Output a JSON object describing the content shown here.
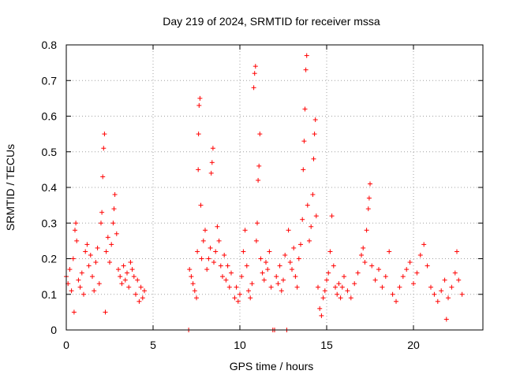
{
  "chart_data": {
    "type": "scatter",
    "title": "Day 219 of 2024, SRMTID for receiver mssa",
    "xlabel": "GPS time / hours",
    "ylabel": "SRMTID / TECUs",
    "xlim": [
      0,
      24
    ],
    "ylim": [
      0,
      0.8
    ],
    "xticks": [
      0,
      5,
      10,
      15,
      20
    ],
    "xtick_labels": [
      "0",
      "5",
      "10",
      "15",
      "20"
    ],
    "yticks": [
      0,
      0.1,
      0.2,
      0.3,
      0.4,
      0.5,
      0.6,
      0.7,
      0.8
    ],
    "ytick_labels": [
      "0",
      "0.1",
      "0.2",
      "0.3",
      "0.4",
      "0.5",
      "0.6",
      "0.7",
      "0.8"
    ],
    "grid": true,
    "marker": "+",
    "color": "#ff0000",
    "series": [
      {
        "name": "mssa",
        "points": [
          [
            0.0,
            0.15
          ],
          [
            0.1,
            0.13
          ],
          [
            0.2,
            0.17
          ],
          [
            0.3,
            0.11
          ],
          [
            0.4,
            0.2
          ],
          [
            0.45,
            0.05
          ],
          [
            0.5,
            0.28
          ],
          [
            0.55,
            0.3
          ],
          [
            0.6,
            0.25
          ],
          [
            0.7,
            0.14
          ],
          [
            0.8,
            0.12
          ],
          [
            0.9,
            0.16
          ],
          [
            1.0,
            0.1
          ],
          [
            1.1,
            0.22
          ],
          [
            1.2,
            0.24
          ],
          [
            1.3,
            0.18
          ],
          [
            1.4,
            0.21
          ],
          [
            1.5,
            0.15
          ],
          [
            1.6,
            0.11
          ],
          [
            1.7,
            0.19
          ],
          [
            1.8,
            0.23
          ],
          [
            1.9,
            0.13
          ],
          [
            2.0,
            0.3
          ],
          [
            2.05,
            0.33
          ],
          [
            2.1,
            0.43
          ],
          [
            2.15,
            0.51
          ],
          [
            2.2,
            0.55
          ],
          [
            2.25,
            0.05
          ],
          [
            2.3,
            0.22
          ],
          [
            2.4,
            0.26
          ],
          [
            2.5,
            0.19
          ],
          [
            2.6,
            0.24
          ],
          [
            2.7,
            0.3
          ],
          [
            2.75,
            0.34
          ],
          [
            2.8,
            0.38
          ],
          [
            2.9,
            0.27
          ],
          [
            3.0,
            0.17
          ],
          [
            3.1,
            0.15
          ],
          [
            3.2,
            0.13
          ],
          [
            3.3,
            0.18
          ],
          [
            3.4,
            0.14
          ],
          [
            3.5,
            0.16
          ],
          [
            3.6,
            0.12
          ],
          [
            3.7,
            0.19
          ],
          [
            3.8,
            0.17
          ],
          [
            3.9,
            0.15
          ],
          [
            4.0,
            0.1
          ],
          [
            4.1,
            0.14
          ],
          [
            4.2,
            0.08
          ],
          [
            4.3,
            0.12
          ],
          [
            4.4,
            0.09
          ],
          [
            4.5,
            0.11
          ],
          [
            7.05,
            0.0
          ],
          [
            7.1,
            0.17
          ],
          [
            7.2,
            0.15
          ],
          [
            7.3,
            0.13
          ],
          [
            7.4,
            0.11
          ],
          [
            7.5,
            0.09
          ],
          [
            7.55,
            0.22
          ],
          [
            7.6,
            0.45
          ],
          [
            7.62,
            0.55
          ],
          [
            7.65,
            0.63
          ],
          [
            7.7,
            0.65
          ],
          [
            7.75,
            0.35
          ],
          [
            7.8,
            0.2
          ],
          [
            7.9,
            0.25
          ],
          [
            8.0,
            0.28
          ],
          [
            8.1,
            0.17
          ],
          [
            8.2,
            0.2
          ],
          [
            8.3,
            0.23
          ],
          [
            8.35,
            0.44
          ],
          [
            8.4,
            0.47
          ],
          [
            8.45,
            0.51
          ],
          [
            8.5,
            0.19
          ],
          [
            8.6,
            0.22
          ],
          [
            8.7,
            0.29
          ],
          [
            8.8,
            0.25
          ],
          [
            8.9,
            0.18
          ],
          [
            9.0,
            0.15
          ],
          [
            9.1,
            0.21
          ],
          [
            9.2,
            0.14
          ],
          [
            9.3,
            0.18
          ],
          [
            9.4,
            0.12
          ],
          [
            9.5,
            0.16
          ],
          [
            9.7,
            0.09
          ],
          [
            9.8,
            0.12
          ],
          [
            9.9,
            0.08
          ],
          [
            10.0,
            0.1
          ],
          [
            10.1,
            0.15
          ],
          [
            10.2,
            0.22
          ],
          [
            10.3,
            0.28
          ],
          [
            10.4,
            0.18
          ],
          [
            10.5,
            0.11
          ],
          [
            10.6,
            0.09
          ],
          [
            10.7,
            0.13
          ],
          [
            10.8,
            0.68
          ],
          [
            10.85,
            0.72
          ],
          [
            10.9,
            0.74
          ],
          [
            10.95,
            0.25
          ],
          [
            11.0,
            0.3
          ],
          [
            11.05,
            0.42
          ],
          [
            11.1,
            0.46
          ],
          [
            11.15,
            0.55
          ],
          [
            11.2,
            0.2
          ],
          [
            11.3,
            0.16
          ],
          [
            11.4,
            0.14
          ],
          [
            11.5,
            0.19
          ],
          [
            11.6,
            0.17
          ],
          [
            11.7,
            0.22
          ],
          [
            11.8,
            0.12
          ],
          [
            11.9,
            0.0
          ],
          [
            12.0,
            0.0
          ],
          [
            12.1,
            0.15
          ],
          [
            12.2,
            0.13
          ],
          [
            12.3,
            0.18
          ],
          [
            12.4,
            0.11
          ],
          [
            12.5,
            0.14
          ],
          [
            12.6,
            0.21
          ],
          [
            12.7,
            0.0
          ],
          [
            12.8,
            0.28
          ],
          [
            12.9,
            0.19
          ],
          [
            13.0,
            0.17
          ],
          [
            13.1,
            0.23
          ],
          [
            13.2,
            0.15
          ],
          [
            13.3,
            0.12
          ],
          [
            13.4,
            0.2
          ],
          [
            13.5,
            0.24
          ],
          [
            13.6,
            0.31
          ],
          [
            13.65,
            0.45
          ],
          [
            13.7,
            0.53
          ],
          [
            13.75,
            0.62
          ],
          [
            13.8,
            0.73
          ],
          [
            13.85,
            0.77
          ],
          [
            13.9,
            0.35
          ],
          [
            14.0,
            0.25
          ],
          [
            14.1,
            0.29
          ],
          [
            14.2,
            0.38
          ],
          [
            14.25,
            0.48
          ],
          [
            14.3,
            0.55
          ],
          [
            14.35,
            0.59
          ],
          [
            14.4,
            0.32
          ],
          [
            14.5,
            0.12
          ],
          [
            14.6,
            0.06
          ],
          [
            14.7,
            0.04
          ],
          [
            14.8,
            0.09
          ],
          [
            14.9,
            0.11
          ],
          [
            15.0,
            0.14
          ],
          [
            15.1,
            0.16
          ],
          [
            15.2,
            0.22
          ],
          [
            15.3,
            0.32
          ],
          [
            15.4,
            0.18
          ],
          [
            15.5,
            0.12
          ],
          [
            15.6,
            0.1
          ],
          [
            15.7,
            0.13
          ],
          [
            15.8,
            0.09
          ],
          [
            15.9,
            0.12
          ],
          [
            16.0,
            0.15
          ],
          [
            16.2,
            0.11
          ],
          [
            16.4,
            0.09
          ],
          [
            16.6,
            0.13
          ],
          [
            16.8,
            0.16
          ],
          [
            17.0,
            0.21
          ],
          [
            17.1,
            0.23
          ],
          [
            17.2,
            0.19
          ],
          [
            17.3,
            0.28
          ],
          [
            17.4,
            0.34
          ],
          [
            17.45,
            0.37
          ],
          [
            17.5,
            0.41
          ],
          [
            17.6,
            0.18
          ],
          [
            17.8,
            0.14
          ],
          [
            18.0,
            0.17
          ],
          [
            18.2,
            0.12
          ],
          [
            18.4,
            0.15
          ],
          [
            18.6,
            0.22
          ],
          [
            18.8,
            0.1
          ],
          [
            19.0,
            0.08
          ],
          [
            19.2,
            0.12
          ],
          [
            19.4,
            0.15
          ],
          [
            19.6,
            0.17
          ],
          [
            19.8,
            0.19
          ],
          [
            20.0,
            0.13
          ],
          [
            20.2,
            0.16
          ],
          [
            20.4,
            0.21
          ],
          [
            20.6,
            0.24
          ],
          [
            20.8,
            0.18
          ],
          [
            21.0,
            0.12
          ],
          [
            21.2,
            0.1
          ],
          [
            21.4,
            0.08
          ],
          [
            21.6,
            0.11
          ],
          [
            21.8,
            0.14
          ],
          [
            21.9,
            0.03
          ],
          [
            22.0,
            0.09
          ],
          [
            22.2,
            0.12
          ],
          [
            22.4,
            0.16
          ],
          [
            22.5,
            0.22
          ],
          [
            22.6,
            0.14
          ],
          [
            22.8,
            0.1
          ]
        ]
      }
    ]
  }
}
